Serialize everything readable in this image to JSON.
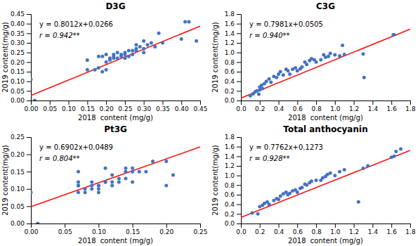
{
  "chart_data": [
    {
      "type": "scatter",
      "title": "D3G",
      "annotations": [
        "y = 0.8012x+0.0266",
        "r = 0.942**"
      ],
      "xlabel": "2018  content (mg/g)",
      "ylabel": "2019 content(mg/g)",
      "xlim": [
        0,
        0.45
      ],
      "ylim": [
        0,
        0.45
      ],
      "xticks": [
        {
          "value": 0,
          "label": "0.00"
        },
        0.05,
        {
          "value": 0.1,
          "label": "0.10"
        },
        0.15,
        {
          "value": 0.2,
          "label": "0.20"
        },
        0.25,
        {
          "value": 0.3,
          "label": "0.30"
        },
        0.35,
        {
          "value": 0.4,
          "label": "0.40"
        },
        0.45
      ],
      "yticks": [
        {
          "value": 0,
          "label": "0.00"
        },
        0.05,
        {
          "value": 0.1,
          "label": "0.10"
        },
        0.15,
        {
          "value": 0.2,
          "label": "0.20"
        },
        0.25,
        {
          "value": 0.3,
          "label": "0.30"
        },
        0.35,
        {
          "value": 0.4,
          "label": "0.40"
        },
        0.45
      ],
      "grid": false,
      "series": [
        {
          "type": "scatter",
          "color": "#4472C4",
          "x": [
            0.0,
            0.01,
            0.15,
            0.15,
            0.17,
            0.18,
            0.18,
            0.19,
            0.19,
            0.2,
            0.2,
            0.2,
            0.21,
            0.21,
            0.22,
            0.22,
            0.22,
            0.23,
            0.23,
            0.24,
            0.24,
            0.25,
            0.25,
            0.25,
            0.26,
            0.26,
            0.27,
            0.27,
            0.28,
            0.28,
            0.28,
            0.29,
            0.3,
            0.3,
            0.3,
            0.31,
            0.32,
            0.33,
            0.34,
            0.35,
            0.4,
            0.41,
            0.42,
            0.44
          ],
          "values": [
            0.11,
            0.0,
            0.16,
            0.21,
            0.16,
            0.17,
            0.23,
            0.15,
            0.23,
            0.16,
            0.2,
            0.24,
            0.21,
            0.22,
            0.23,
            0.22,
            0.24,
            0.22,
            0.25,
            0.23,
            0.24,
            0.22,
            0.24,
            0.25,
            0.23,
            0.26,
            0.24,
            0.26,
            0.27,
            0.26,
            0.29,
            0.28,
            0.25,
            0.27,
            0.31,
            0.29,
            0.3,
            0.28,
            0.35,
            0.3,
            0.32,
            0.41,
            0.41,
            0.31
          ]
        },
        {
          "type": "line",
          "color": "#FF0000",
          "x": [
            0,
            0.45
          ],
          "values": [
            0.0266,
            0.38714
          ]
        }
      ]
    },
    {
      "type": "scatter",
      "title": "C3G",
      "annotations": [
        "y = 0.7981x+0.0505",
        "r = 0.940**"
      ],
      "xlabel": "2018  content (mg/g)",
      "ylabel": "2019 content(mg/g)",
      "xlim": [
        0.0,
        1.8
      ],
      "ylim": [
        0.0,
        1.8
      ],
      "xticks": [
        {
          "value": 0,
          "label": "0.0"
        },
        0.2,
        0.4,
        0.6,
        0.8,
        {
          "value": 1,
          "label": "1.0"
        },
        1.2,
        1.4,
        1.6,
        1.8
      ],
      "yticks": [
        {
          "value": 0,
          "label": "0.0"
        },
        0.2,
        0.4,
        0.6,
        0.8,
        {
          "value": 1,
          "label": "1.0"
        },
        1.2,
        1.4,
        1.6,
        1.8
      ],
      "grid": false,
      "series": [
        {
          "type": "scatter",
          "color": "#4472C4",
          "x": [
            0.1,
            0.13,
            0.15,
            0.17,
            0.19,
            0.2,
            0.2,
            0.22,
            0.23,
            0.25,
            0.27,
            0.3,
            0.32,
            0.35,
            0.38,
            0.4,
            0.42,
            0.45,
            0.48,
            0.5,
            0.52,
            0.55,
            0.58,
            0.6,
            0.63,
            0.65,
            0.68,
            0.7,
            0.73,
            0.75,
            0.78,
            0.8,
            0.85,
            0.88,
            0.9,
            0.93,
            0.95,
            1.0,
            1.05,
            1.08,
            1.1,
            1.3,
            1.31,
            1.62,
            1.63
          ],
          "values": [
            0.1,
            0.14,
            0.18,
            0.2,
            0.13,
            0.22,
            0.28,
            0.32,
            0.25,
            0.35,
            0.4,
            0.45,
            0.38,
            0.5,
            0.48,
            0.55,
            0.6,
            0.53,
            0.65,
            0.62,
            0.55,
            0.65,
            0.68,
            0.62,
            0.66,
            0.7,
            0.8,
            0.75,
            0.83,
            0.87,
            0.85,
            0.8,
            0.85,
            0.95,
            0.9,
            0.92,
            0.98,
            0.95,
            0.93,
            1.15,
            0.96,
            0.97,
            0.48,
            1.37,
            1.37
          ]
        },
        {
          "type": "line",
          "color": "#FF0000",
          "x": [
            0.0,
            1.8
          ],
          "values": [
            0.0505,
            1.48708
          ]
        }
      ]
    },
    {
      "type": "scatter",
      "title": "Pt3G",
      "annotations": [
        "y = 0.6902x+0.0489",
        "r = 0.804**"
      ],
      "xlabel": "2018  content (mg/g)",
      "ylabel": "2019 content(mg/g)",
      "xlim": [
        0,
        0.25
      ],
      "ylim": [
        0,
        0.25
      ],
      "xticks": [
        {
          "value": 0,
          "label": "0.00"
        },
        0.05,
        {
          "value": 0.1,
          "label": "0.10"
        },
        0.15,
        {
          "value": 0.2,
          "label": "0.20"
        },
        0.25
      ],
      "yticks": [
        {
          "value": 0,
          "label": "0.00"
        },
        0.05,
        {
          "value": 0.1,
          "label": "0.10"
        },
        0.15,
        {
          "value": 0.2,
          "label": "0.20"
        },
        0.25
      ],
      "grid": false,
      "series": [
        {
          "type": "scatter",
          "color": "#4472C4",
          "x": [
            0.0,
            0.01,
            0.07,
            0.07,
            0.07,
            0.07,
            0.07,
            0.08,
            0.08,
            0.09,
            0.09,
            0.09,
            0.1,
            0.1,
            0.1,
            0.1,
            0.11,
            0.11,
            0.11,
            0.12,
            0.12,
            0.12,
            0.13,
            0.13,
            0.14,
            0.14,
            0.14,
            0.15,
            0.15,
            0.15,
            0.16,
            0.17,
            0.18,
            0.2,
            0.2,
            0.21
          ],
          "values": [
            0.09,
            0.0,
            0.09,
            0.11,
            0.11,
            0.12,
            0.15,
            0.09,
            0.1,
            0.1,
            0.11,
            0.12,
            0.11,
            0.11,
            0.1,
            0.09,
            0.12,
            0.12,
            0.16,
            0.12,
            0.11,
            0.14,
            0.12,
            0.13,
            0.13,
            0.15,
            0.16,
            0.12,
            0.15,
            0.16,
            0.15,
            0.15,
            0.18,
            0.11,
            0.18,
            0.14
          ]
        },
        {
          "type": "line",
          "color": "#FF0000",
          "x": [
            0,
            0.25
          ],
          "values": [
            0.0489,
            0.22145
          ]
        }
      ]
    },
    {
      "type": "scatter",
      "title": "Total anthocyanin",
      "annotations": [
        "y = 0.7762x+0.1273",
        "r = 0.928**"
      ],
      "xlabel": "2018  content (mg/g)",
      "ylabel": "2019 content(mg/g)",
      "xlim": [
        0.0,
        1.8
      ],
      "ylim": [
        0.0,
        1.8
      ],
      "xticks": [
        {
          "value": 0,
          "label": "0.0"
        },
        0.2,
        0.4,
        0.6,
        0.8,
        {
          "value": 1,
          "label": "1.0"
        },
        1.2,
        1.4,
        1.6,
        1.8
      ],
      "yticks": [
        {
          "value": 0,
          "label": "0.0"
        },
        0.2,
        0.4,
        0.6,
        0.8,
        {
          "value": 1,
          "label": "1.0"
        },
        1.2,
        1.4,
        1.6,
        1.8
      ],
      "grid": false,
      "series": [
        {
          "type": "scatter",
          "color": "#4472C4",
          "x": [
            0.12,
            0.18,
            0.2,
            0.23,
            0.25,
            0.28,
            0.3,
            0.35,
            0.38,
            0.4,
            0.42,
            0.45,
            0.48,
            0.5,
            0.52,
            0.55,
            0.58,
            0.6,
            0.63,
            0.65,
            0.68,
            0.7,
            0.73,
            0.75,
            0.8,
            0.85,
            0.87,
            0.9,
            0.92,
            0.95,
            1.0,
            1.05,
            1.1,
            1.25,
            1.3,
            1.35,
            1.6,
            1.63,
            1.65,
            1.7
          ],
          "values": [
            0.22,
            0.2,
            0.35,
            0.38,
            0.42,
            0.45,
            0.4,
            0.48,
            0.52,
            0.5,
            0.57,
            0.62,
            0.65,
            0.6,
            0.63,
            0.68,
            0.7,
            0.65,
            0.73,
            0.75,
            0.82,
            0.8,
            0.85,
            0.88,
            0.9,
            0.9,
            0.95,
            0.98,
            1.02,
            1.05,
            1.0,
            1.08,
            1.12,
            0.45,
            1.15,
            1.2,
            1.38,
            1.4,
            1.5,
            1.55
          ]
        },
        {
          "type": "line",
          "color": "#FF0000",
          "x": [
            0.0,
            1.8
          ],
          "values": [
            0.1273,
            1.52446
          ]
        }
      ]
    }
  ]
}
